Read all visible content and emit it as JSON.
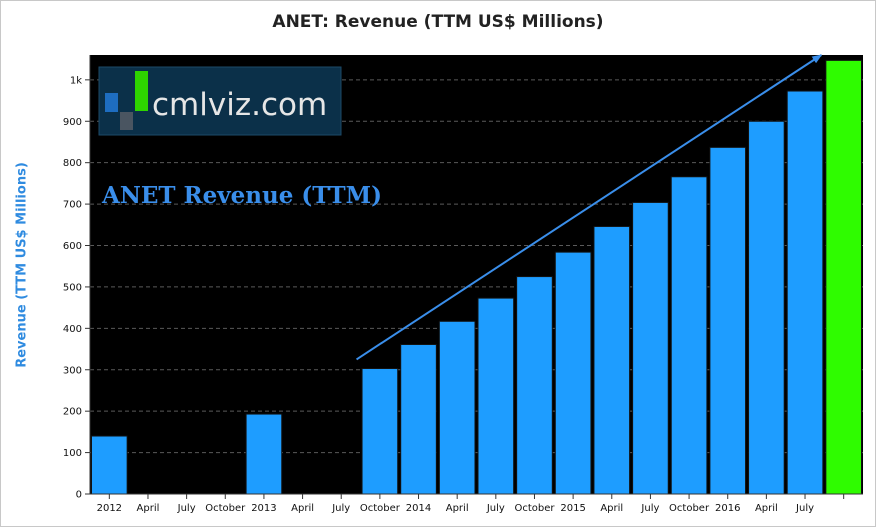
{
  "chart_data": {
    "type": "bar",
    "title": "ANET: Revenue (TTM US$ Millions)",
    "ylabel": "Revenue (TTM US$ Millions)",
    "ylim": [
      0,
      1060
    ],
    "grid": true,
    "y_ticks": [
      {
        "value": 0,
        "label": "0"
      },
      {
        "value": 100,
        "label": "100"
      },
      {
        "value": 200,
        "label": "200"
      },
      {
        "value": 300,
        "label": "300"
      },
      {
        "value": 400,
        "label": "400"
      },
      {
        "value": 500,
        "label": "500"
      },
      {
        "value": 600,
        "label": "600"
      },
      {
        "value": 700,
        "label": "700"
      },
      {
        "value": 800,
        "label": "800"
      },
      {
        "value": 900,
        "label": "900"
      },
      {
        "value": 1000,
        "label": "1k"
      }
    ],
    "categories": [
      "2012",
      "April",
      "July",
      "October",
      "2013",
      "April",
      "July",
      "October",
      "2014",
      "April",
      "July",
      "October",
      "2015",
      "April",
      "July",
      "October",
      "2016",
      "April",
      "July",
      ""
    ],
    "values": [
      140,
      null,
      null,
      null,
      193,
      null,
      null,
      303,
      361,
      417,
      473,
      525,
      584,
      646,
      704,
      766,
      837,
      900,
      973,
      1047
    ],
    "highlight_last": true,
    "colors": {
      "bar": "#1e9dff",
      "highlight": "#2ffc00",
      "background": "#000000",
      "grid": "#5a5a5a",
      "annotation": "#3a8eea",
      "trend_arrow": "#3a8eea"
    },
    "annotation": "ANET Revenue (TTM)",
    "trend_arrow": {
      "from_value": 325,
      "to_value": 1060
    }
  },
  "logo": {
    "text": "cmlviz.com"
  }
}
